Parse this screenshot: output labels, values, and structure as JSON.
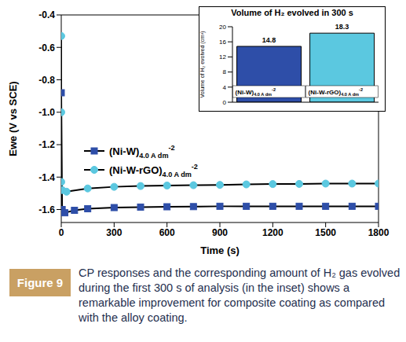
{
  "chart_data": [
    {
      "type": "line",
      "x_label": "Time (s)",
      "y_label": "Ewe (V vs SCE)",
      "xlim": [
        0,
        1800
      ],
      "xticks": [
        0,
        300,
        600,
        900,
        1200,
        1500,
        1800
      ],
      "ylim": [
        -1.68,
        -0.4
      ],
      "yticks": [
        -0.4,
        -0.6,
        -0.8,
        {
          "value": -1,
          "label": "-1.0"
        },
        -1.2,
        -1.4,
        -1.6
      ],
      "legend": "left",
      "series": [
        {
          "name": "(Ni-W)4.0 A dm-2",
          "color": "#2e4ea8",
          "marker": "square",
          "x": [
            0,
            5,
            20,
            75,
            150,
            300,
            450,
            600,
            750,
            900,
            1050,
            1200,
            1350,
            1500,
            1650,
            1800
          ],
          "values": [
            -0.88,
            -1.6,
            -1.62,
            -1.605,
            -1.595,
            -1.588,
            -1.585,
            -1.583,
            -1.582,
            -1.58,
            -1.58,
            -1.58,
            -1.58,
            -1.58,
            -1.58,
            -1.58
          ]
        },
        {
          "name": "(Ni-W-rGO)4.0 A dm-2",
          "color": "#5bc8e0",
          "marker": "circle",
          "x": [
            0,
            0,
            0,
            5,
            30,
            150,
            300,
            450,
            600,
            750,
            900,
            1050,
            1200,
            1350,
            1500,
            1650,
            1800
          ],
          "values": [
            -0.53,
            -1.0,
            -1.43,
            -1.48,
            -1.49,
            -1.47,
            -1.46,
            -1.455,
            -1.452,
            -1.45,
            -1.448,
            -1.445,
            -1.443,
            -1.442,
            -1.44,
            -1.44,
            -1.44
          ]
        }
      ]
    },
    {
      "type": "bar",
      "title": "Volume of H₂ evolved in 300 s",
      "y_label": "Volume of H₂ evolved (cm³)",
      "categories": [
        "(Ni-W)4.0 A dm-2",
        "(Ni-W-rGO)4.0 A dm-2"
      ],
      "values": [
        14.8,
        18.3
      ],
      "colors": [
        "#2e4ea8",
        "#5bc8e0"
      ],
      "ylim": [
        0,
        20
      ],
      "yticks": [
        0,
        4,
        8,
        12,
        16,
        20
      ],
      "data_labels": true
    }
  ],
  "figure": {
    "label": "Figure 9",
    "caption": "CP responses and the corresponding amount of H₂ gas evolved during the first 300 s of analysis (in the inset) shows a remarkable improvement for composite coating as compared with the alloy coating."
  }
}
